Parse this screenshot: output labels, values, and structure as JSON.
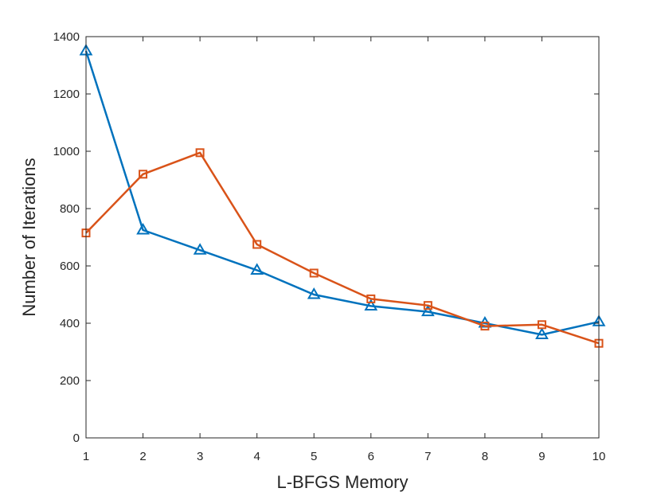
{
  "chart_data": {
    "type": "line",
    "title": "",
    "xlabel": "L-BFGS Memory",
    "ylabel": "Number of Iterations",
    "xlim": [
      1,
      10
    ],
    "ylim": [
      0,
      1400
    ],
    "xticks": [
      "1",
      "2",
      "3",
      "4",
      "5",
      "6",
      "7",
      "8",
      "9",
      "10"
    ],
    "yticks": [
      "0",
      "200",
      "400",
      "600",
      "800",
      "1000",
      "1200",
      "1400"
    ],
    "grid": false,
    "legend": "none",
    "x": [
      1,
      2,
      3,
      4,
      5,
      6,
      7,
      8,
      9,
      10
    ],
    "series": [
      {
        "color": "#0072BD",
        "marker": "triangle",
        "values": [
          1350,
          725,
          655,
          585,
          500,
          460,
          440,
          400,
          360,
          405
        ]
      },
      {
        "color": "#D95319",
        "marker": "square",
        "values": [
          715,
          920,
          995,
          675,
          575,
          485,
          462,
          390,
          395,
          330
        ]
      }
    ]
  }
}
